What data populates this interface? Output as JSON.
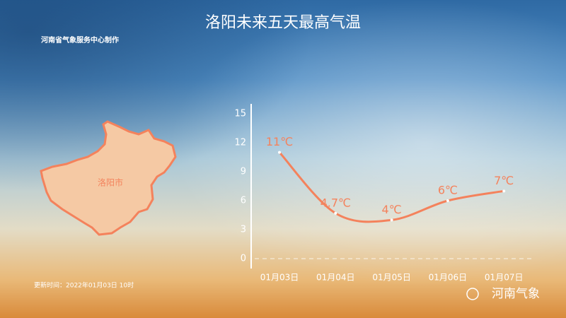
{
  "chart_data": {
    "type": "line",
    "title": "洛阳未来五天最高气温",
    "subtitle": "河南省气象服务中心制作",
    "update_time": "更新时间：2022年01月03日 10时",
    "map_label": "洛阳市",
    "watermark": "河南气象",
    "categories": [
      "01月03日",
      "01月04日",
      "01月05日",
      "01月06日",
      "01月07日"
    ],
    "series": [
      {
        "name": "最高气温",
        "color": "#f4825c",
        "values": [
          11,
          4.7,
          4,
          6,
          7
        ],
        "value_labels": [
          "11℃",
          "4.7℃",
          "4℃",
          "6℃",
          "7℃"
        ]
      }
    ],
    "ylim": [
      0,
      15
    ],
    "yticks": [
      0,
      3,
      6,
      9,
      12,
      15
    ],
    "grid": false
  }
}
